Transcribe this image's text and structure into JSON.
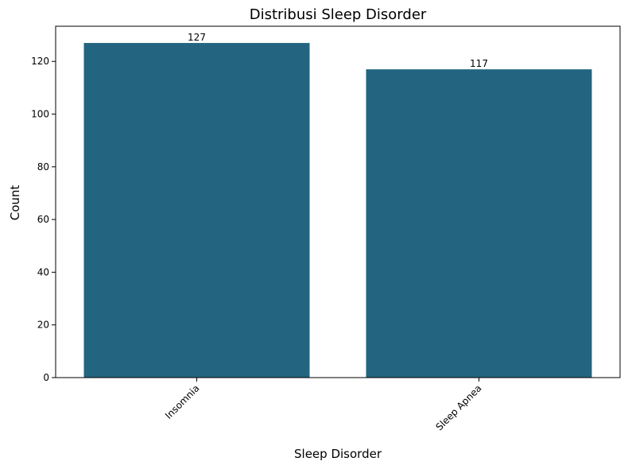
{
  "chart_data": {
    "type": "bar",
    "title": "Distribusi Sleep Disorder",
    "xlabel": "Sleep Disorder",
    "ylabel": "Count",
    "categories": [
      "Insomnia",
      "Sleep Apnea"
    ],
    "values": [
      127,
      117
    ],
    "data_labels": [
      "127",
      "117"
    ],
    "ylim": [
      0,
      133.35
    ],
    "yticks": [
      0,
      20,
      40,
      60,
      80,
      100,
      120
    ],
    "xtick_rotation_deg": 45,
    "grid": false,
    "legend": "none",
    "bar_color": "#236580"
  }
}
